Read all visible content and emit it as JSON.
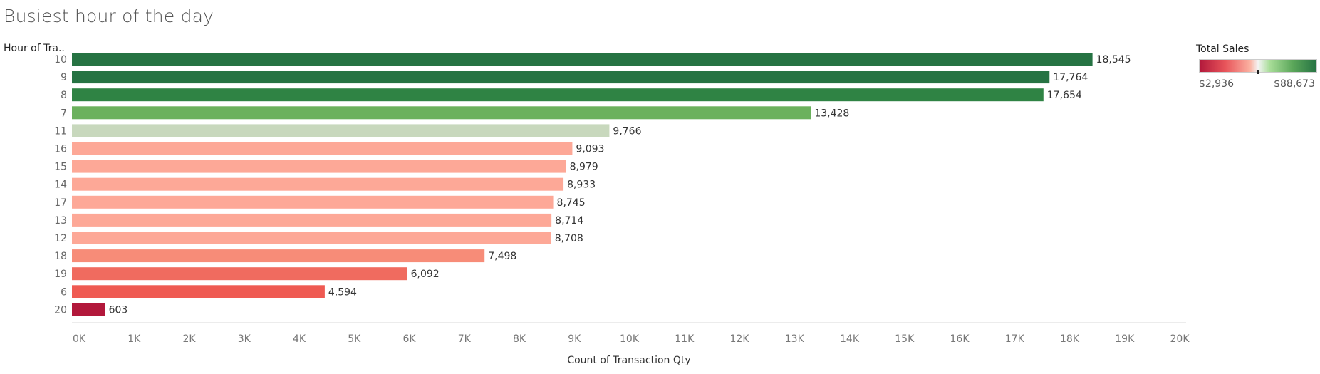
{
  "title": "Busiest hour of the day",
  "row_header": "Hour of Tra..",
  "legend": {
    "title": "Total Sales",
    "min_label": "$2,936",
    "max_label": "$88,673",
    "colors": [
      "#b2183b",
      "#e8545a",
      "#fbb0a0",
      "#f4f4f4",
      "#a8dd98",
      "#5aa659",
      "#267343"
    ]
  },
  "chart_data": {
    "type": "bar",
    "orientation": "horizontal",
    "categories": [
      "10",
      "9",
      "8",
      "7",
      "11",
      "16",
      "15",
      "14",
      "17",
      "13",
      "12",
      "18",
      "19",
      "6",
      "20"
    ],
    "values": [
      18545,
      17764,
      17654,
      13428,
      9766,
      9093,
      8979,
      8933,
      8745,
      8714,
      8708,
      7498,
      6092,
      4594,
      603
    ],
    "value_labels": [
      "18,545",
      "17,764",
      "17,654",
      "13,428",
      "9,766",
      "9,093",
      "8,979",
      "8,933",
      "8,745",
      "8,714",
      "8,708",
      "7,498",
      "6,092",
      "4,594",
      "603"
    ],
    "bar_colors": [
      "#267343",
      "#267343",
      "#2f8344",
      "#6bb15d",
      "#c8d8bd",
      "#fda897",
      "#fda897",
      "#fda897",
      "#fda897",
      "#fda897",
      "#fda897",
      "#f78c78",
      "#f06b5f",
      "#ef5a52",
      "#b2183b"
    ],
    "xlabel": "Count of Transaction Qty",
    "ylabel": "Hour of Tra..",
    "xlim": [
      0,
      20000
    ],
    "ticks": [
      0,
      1000,
      2000,
      3000,
      4000,
      5000,
      6000,
      7000,
      8000,
      9000,
      10000,
      11000,
      12000,
      13000,
      14000,
      15000,
      16000,
      17000,
      18000,
      19000,
      20000
    ],
    "tick_labels": [
      "0K",
      "1K",
      "2K",
      "3K",
      "4K",
      "5K",
      "6K",
      "7K",
      "8K",
      "9K",
      "10K",
      "11K",
      "12K",
      "13K",
      "14K",
      "15K",
      "16K",
      "17K",
      "18K",
      "19K",
      "20K"
    ],
    "grid": false,
    "legend_position": "top-right"
  }
}
